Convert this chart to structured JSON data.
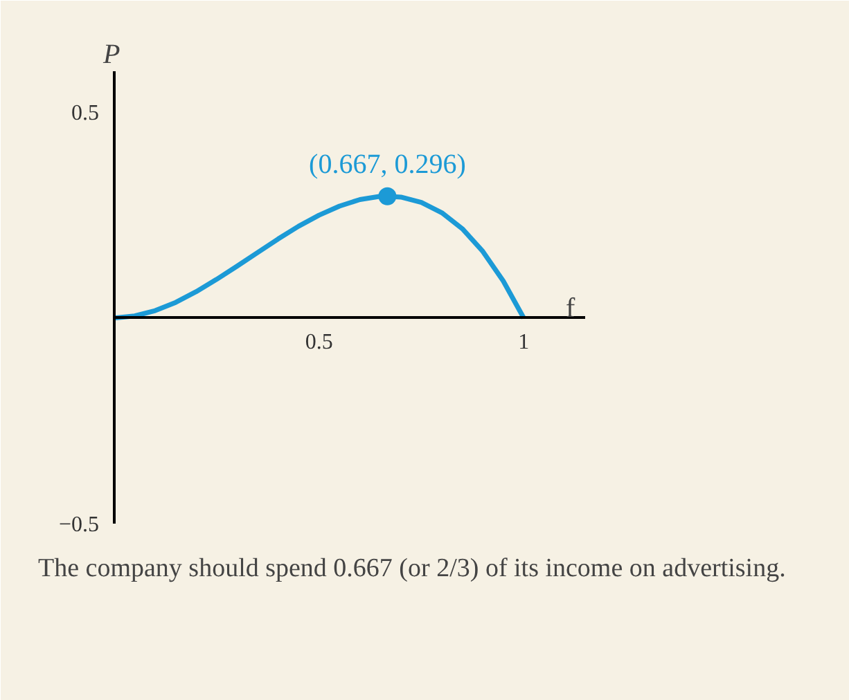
{
  "chart_data": {
    "type": "line",
    "xlabel": "f",
    "ylabel": "P",
    "x": [
      0,
      0.05,
      0.1,
      0.15,
      0.2,
      0.25,
      0.3,
      0.35,
      0.4,
      0.45,
      0.5,
      0.55,
      0.6,
      0.65,
      0.667,
      0.7,
      0.75,
      0.8,
      0.85,
      0.9,
      0.95,
      1
    ],
    "series": [
      {
        "color": "#1c9ad6",
        "values": [
          0,
          0.005,
          0.018,
          0.038,
          0.064,
          0.094,
          0.126,
          0.159,
          0.192,
          0.223,
          0.25,
          0.272,
          0.288,
          0.296,
          0.296,
          0.294,
          0.281,
          0.256,
          0.217,
          0.162,
          0.09,
          0
        ]
      },
      {
        "type": "scatter",
        "color": "#1c9ad6",
        "x": [
          0.667
        ],
        "values": [
          0.296
        ],
        "marker": "circle"
      }
    ],
    "annotations": [
      {
        "text": "(0.667, 0.296)",
        "x": 0.667,
        "y": 0.296
      },
      "The company should spend 0.667 (or 2/3) of its income on advertising."
    ],
    "xlim": [
      0,
      1.15
    ],
    "ylim": [
      -0.5,
      0.6
    ],
    "xticks": [
      0.5,
      1
    ],
    "yticks": [
      0.5,
      -0.5
    ],
    "grid": false
  }
}
